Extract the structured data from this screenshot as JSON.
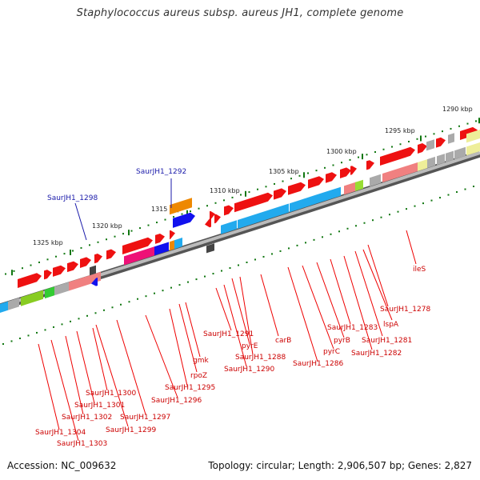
{
  "title": "Staphylococcus aureus subsp. aureus JH1, complete genome",
  "footer": {
    "accession": "Accession: NC_009632",
    "topology": "Topology: circular; Length: 2,906,507 bp; Genes: 2,827"
  },
  "scale_labels": [
    "1290 kbp",
    "1295 kbp",
    "1300 kbp",
    "1305 kbp",
    "1310 kbp",
    "1315 kbp",
    "1320 kbp",
    "1325 kbp"
  ],
  "colors": {
    "gene_red": "#ee1111",
    "gene_pink": "#f08080",
    "gene_cyan": "#22aaee",
    "gene_blue": "#1111ee",
    "gene_orange": "#ee8800",
    "gene_magenta": "#ee1177",
    "gene_gray": "#aaaaaa",
    "gene_yellow": "#eeee99",
    "backbone": "#888888",
    "tick_green": "#117711",
    "label_red": "#cc0000",
    "label_blue": "#1a1aaa"
  },
  "gene_labels": [
    "SaurJH1_1278",
    "lspA",
    "SaurJH1_1281",
    "SaurJH1_1282",
    "SaurJH1_1283",
    "pyrB",
    "pyrC",
    "SaurJH1_1286",
    "carB",
    "SaurJH1_1288",
    "pyrE",
    "SaurJH1_1290",
    "SaurJH1_1291",
    "gmk",
    "rpoZ",
    "SaurJH1_1295",
    "SaurJH1_1296",
    "SaurJH1_1297",
    "SaurJH1_1299",
    "SaurJH1_1300",
    "SaurJH1_1301",
    "SaurJH1_1302",
    "SaurJH1_1303",
    "SaurJH1_1304",
    "ileS"
  ],
  "blue_labels": [
    "SaurJH1_1292",
    "SaurJH1_1298"
  ]
}
